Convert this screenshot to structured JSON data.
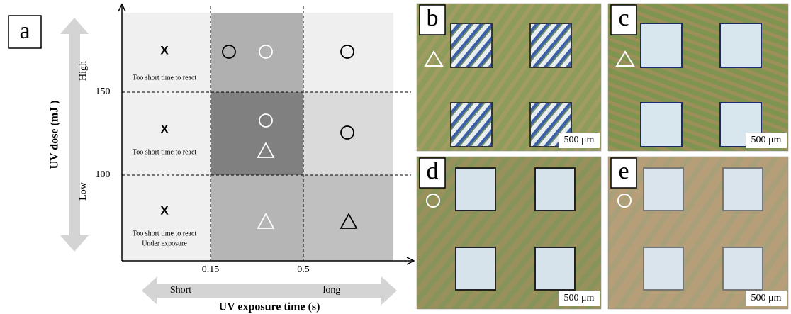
{
  "panel_a": {
    "label": "a",
    "y_axis_label": "UV dose (mJ )",
    "y_high": "High",
    "y_low": "Low",
    "y_ticks": [
      "150",
      "100"
    ],
    "x_ticks": [
      "0.15",
      "0.5"
    ],
    "x_short": "Short",
    "x_long": "long",
    "x_axis_label": "UV exposure time (s)",
    "rows": [
      {
        "mark": "X",
        "notes": [
          "Too short time to react"
        ]
      },
      {
        "mark": "X",
        "notes": [
          "Too short time to react"
        ]
      },
      {
        "mark": "X",
        "notes": [
          "Too short time to react",
          "Under exposure"
        ]
      }
    ]
  },
  "micrographs": [
    {
      "label": "b",
      "scale_bar": "500 μm"
    },
    {
      "label": "c",
      "scale_bar": "500 μm"
    },
    {
      "label": "d",
      "scale_bar": "500 μm"
    },
    {
      "label": "e",
      "scale_bar": "500 μm"
    }
  ]
}
